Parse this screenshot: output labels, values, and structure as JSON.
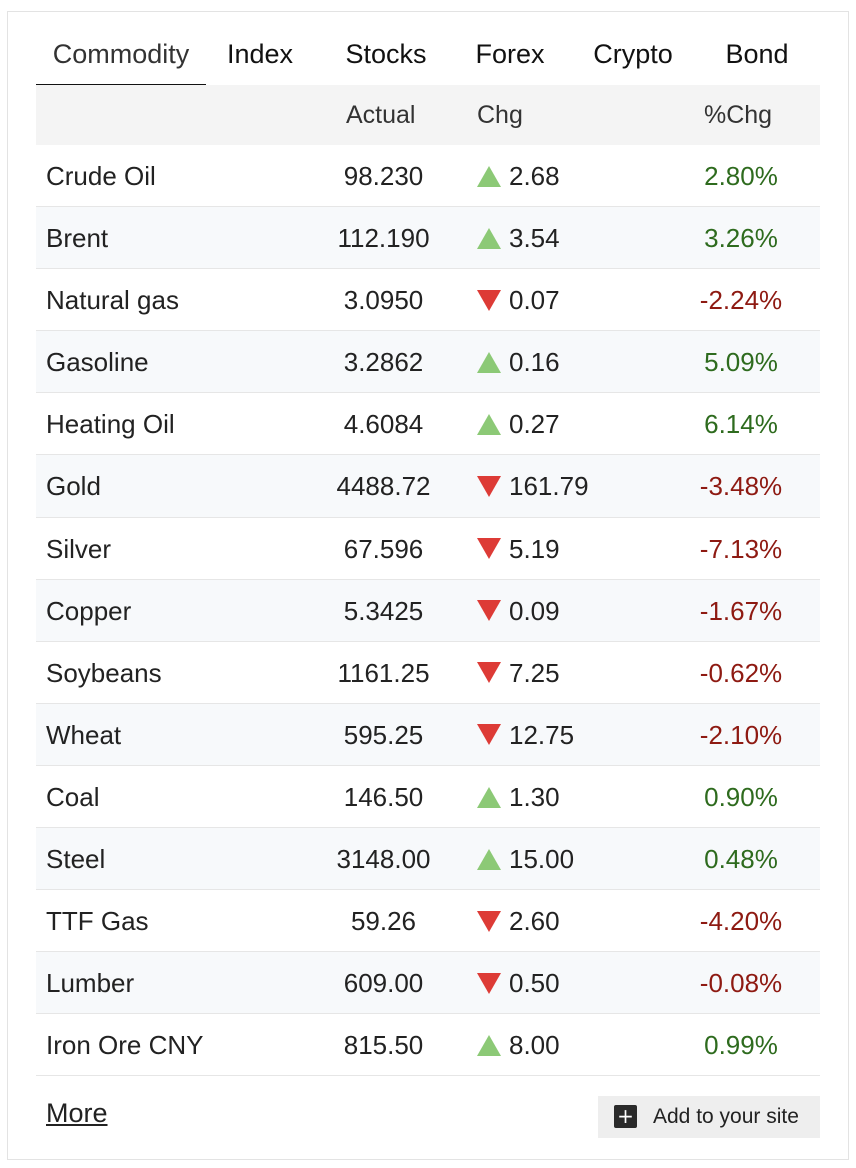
{
  "tabs": [
    {
      "label": "Commodity",
      "active": true
    },
    {
      "label": "Index",
      "active": false
    },
    {
      "label": "Stocks",
      "active": false
    },
    {
      "label": "Forex",
      "active": false
    },
    {
      "label": "Crypto",
      "active": false
    },
    {
      "label": "Bond",
      "active": false
    }
  ],
  "columns": {
    "name": "",
    "actual": "Actual",
    "chg": "Chg",
    "pct": "%Chg"
  },
  "rows": [
    {
      "name": "Crude Oil",
      "actual": "98.230",
      "dir": "up",
      "chg": "2.68",
      "pct": "2.80%"
    },
    {
      "name": "Brent",
      "actual": "112.190",
      "dir": "up",
      "chg": "3.54",
      "pct": "3.26%"
    },
    {
      "name": "Natural gas",
      "actual": "3.0950",
      "dir": "down",
      "chg": "0.07",
      "pct": "-2.24%"
    },
    {
      "name": "Gasoline",
      "actual": "3.2862",
      "dir": "up",
      "chg": "0.16",
      "pct": "5.09%"
    },
    {
      "name": "Heating Oil",
      "actual": "4.6084",
      "dir": "up",
      "chg": "0.27",
      "pct": "6.14%"
    },
    {
      "name": "Gold",
      "actual": "4488.72",
      "dir": "down",
      "chg": "161.79",
      "pct": "-3.48%"
    },
    {
      "name": "Silver",
      "actual": "67.596",
      "dir": "down",
      "chg": "5.19",
      "pct": "-7.13%"
    },
    {
      "name": "Copper",
      "actual": "5.3425",
      "dir": "down",
      "chg": "0.09",
      "pct": "-1.67%"
    },
    {
      "name": "Soybeans",
      "actual": "1161.25",
      "dir": "down",
      "chg": "7.25",
      "pct": "-0.62%"
    },
    {
      "name": "Wheat",
      "actual": "595.25",
      "dir": "down",
      "chg": "12.75",
      "pct": "-2.10%"
    },
    {
      "name": "Coal",
      "actual": "146.50",
      "dir": "up",
      "chg": "1.30",
      "pct": "0.90%"
    },
    {
      "name": "Steel",
      "actual": "3148.00",
      "dir": "up",
      "chg": "15.00",
      "pct": "0.48%"
    },
    {
      "name": "TTF Gas",
      "actual": "59.26",
      "dir": "down",
      "chg": "2.60",
      "pct": "-4.20%"
    },
    {
      "name": "Lumber",
      "actual": "609.00",
      "dir": "down",
      "chg": "0.50",
      "pct": "-0.08%"
    },
    {
      "name": "Iron Ore CNY",
      "actual": "815.50",
      "dir": "up",
      "chg": "8.00",
      "pct": "0.99%"
    }
  ],
  "icons": {
    "up": "triangle-up-icon",
    "down": "triangle-down-icon",
    "add": "plus-square-icon"
  },
  "colors": {
    "up_triangle": "#8cc976",
    "down_triangle": "#dd3b36",
    "positive": "#2e6b1e",
    "negative": "#8e1a12"
  },
  "footer": {
    "more_label": "More",
    "add_label": "Add to your site",
    "add_glyph": "+"
  }
}
